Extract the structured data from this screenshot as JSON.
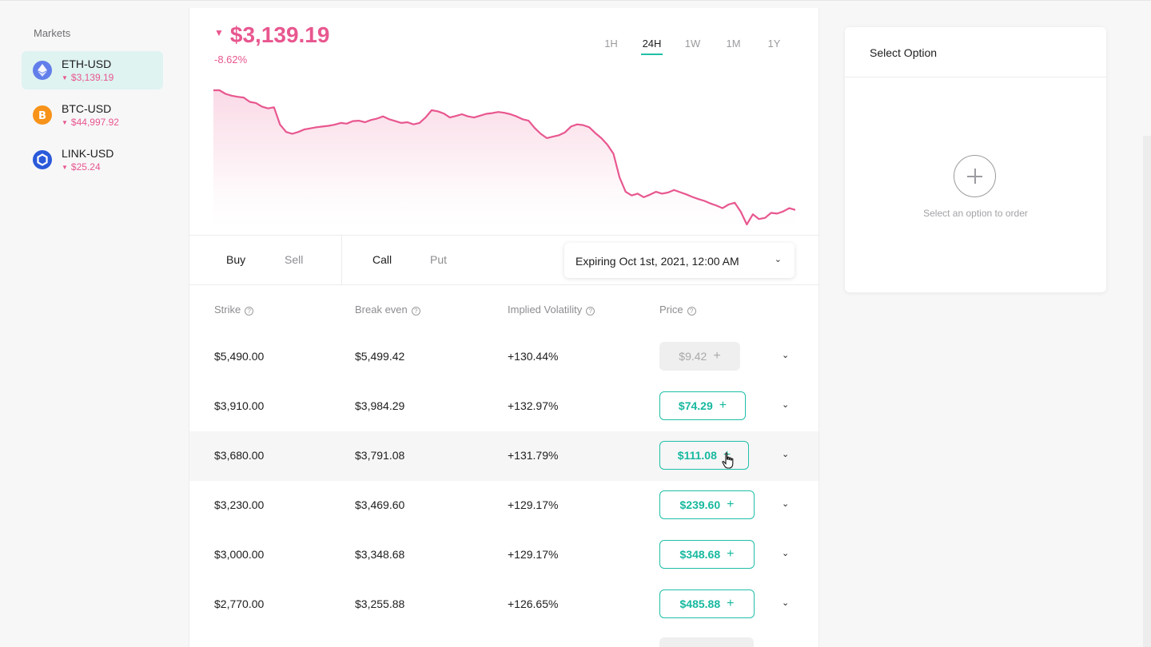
{
  "sidebar": {
    "title": "Markets",
    "markets": [
      {
        "symbol": "ETH-USD",
        "price": "$3,139.19",
        "color": "#627eea",
        "icon": "ethereum-icon"
      },
      {
        "symbol": "BTC-USD",
        "price": "$44,997.92",
        "color": "#f7931a",
        "icon": "bitcoin-icon"
      },
      {
        "symbol": "LINK-USD",
        "price": "$25.24",
        "color": "#2a5ada",
        "icon": "chainlink-icon"
      }
    ]
  },
  "header": {
    "price": "$3,139.19",
    "change": "-8.62%",
    "ranges": [
      "1H",
      "24H",
      "1W",
      "1M",
      "1Y"
    ],
    "active_range": "24H"
  },
  "chart_data": {
    "type": "area",
    "color": "#e8578f",
    "values": [
      100,
      100,
      99,
      98.5,
      98.2,
      98,
      96.8,
      96.5,
      95.5,
      95,
      95.3,
      90.5,
      88.5,
      88,
      88.5,
      89.2,
      89.5,
      89.8,
      90,
      90.2,
      90.5,
      91,
      90.8,
      91.5,
      91.6,
      91.2,
      91.8,
      92.2,
      92.8,
      92,
      91.5,
      91,
      91.2,
      90.6,
      91,
      92.5,
      94.5,
      94.2,
      93.6,
      92.5,
      92.9,
      93.4,
      92.8,
      92.5,
      93,
      93.5,
      93.7,
      94,
      93.8,
      93.4,
      92.8,
      92,
      91.6,
      89.6,
      88,
      86.8,
      87.2,
      87.6,
      88.4,
      90,
      90.6,
      90.4,
      89.8,
      88.2,
      86.8,
      85,
      82.5,
      76,
      72,
      71,
      71.5,
      70.5,
      71.2,
      72,
      71.5,
      71.8,
      72.5,
      71.9,
      71.3,
      70.6,
      70,
      69.5,
      68.8,
      68.2,
      67.5,
      68.5,
      69,
      66.5,
      63,
      65.8,
      64.5,
      64.8,
      66.2,
      66,
      66.6,
      67.5,
      67
    ]
  },
  "tabs": {
    "side": [
      "Buy",
      "Sell"
    ],
    "active_side": "Buy",
    "type": [
      "Call",
      "Put"
    ],
    "active_type": "Call",
    "expiry": "Expiring Oct 1st, 2021, 12:00 AM"
  },
  "table": {
    "headers": [
      "Strike",
      "Break even",
      "Implied Volatility",
      "Price"
    ],
    "rows": [
      {
        "strike": "$5,490.00",
        "break_even": "$5,499.42",
        "iv": "+130.44%",
        "price": "$9.42",
        "disabled": true
      },
      {
        "strike": "$3,910.00",
        "break_even": "$3,984.29",
        "iv": "+132.97%",
        "price": "$74.29"
      },
      {
        "strike": "$3,680.00",
        "break_even": "$3,791.08",
        "iv": "+131.79%",
        "price": "$111.08",
        "hover": true
      },
      {
        "strike": "$3,230.00",
        "break_even": "$3,469.60",
        "iv": "+129.17%",
        "price": "$239.60"
      },
      {
        "strike": "$3,000.00",
        "break_even": "$3,348.68",
        "iv": "+129.17%",
        "price": "$348.68"
      },
      {
        "strike": "$2,770.00",
        "break_even": "$3,255.88",
        "iv": "+126.65%",
        "price": "$485.88"
      }
    ]
  },
  "order": {
    "title": "Select Option",
    "hint": "Select an option to order"
  }
}
